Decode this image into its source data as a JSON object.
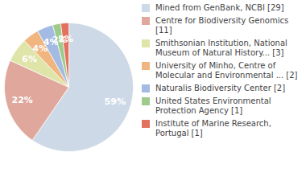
{
  "chart_data": {
    "type": "pie",
    "categories": [
      "Mined from GenBank, NCBI [29]",
      "Centre for Biodiversity Genomics [11]",
      "Smithsonian Institution, National Museum of Natural History... [3]",
      "University of Minho, Centre of Molecular and Environmental ... [2]",
      "Naturalis Biodiversity Center [2]",
      "United States Environmental Protection Agency [1]",
      "Institute of Marine Research, Portugal [1]"
    ],
    "values": [
      59,
      22,
      6,
      4,
      4,
      2,
      2
    ],
    "value_labels": [
      "59%",
      "22%",
      "6%",
      "4%",
      "4%",
      "2%",
      "2%"
    ],
    "data_labels": true,
    "colors": [
      "#cdd9e6",
      "#e0a79d",
      "#dfe4a9",
      "#f1b57f",
      "#a3bbe2",
      "#9ecb8c",
      "#e2725f"
    ],
    "legend": "right"
  }
}
